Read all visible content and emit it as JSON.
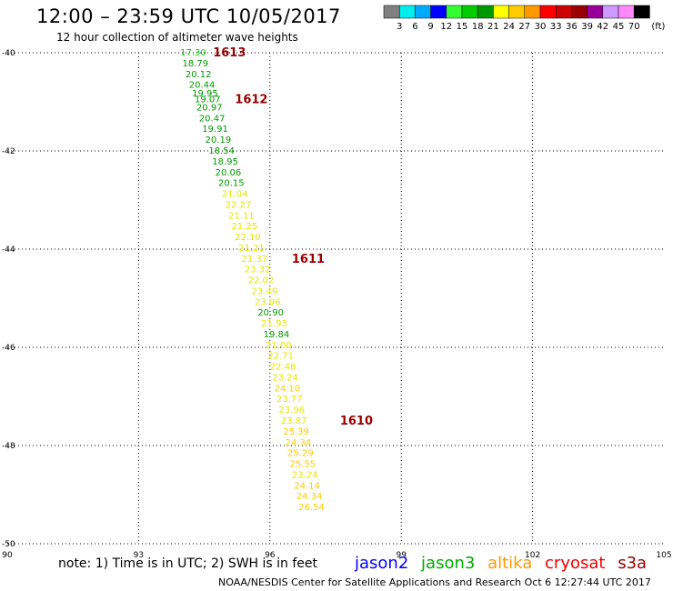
{
  "title": "12:00 – 23:59 UTC 10/05/2017",
  "subtitle": "12 hour collection of altimeter wave heights",
  "note": "note:  1) Time is in UTC; 2) SWH is in feet",
  "footer": "NOAA/NESDIS Center for Satellite Applications and Research    Oct  6 12:27:44 UTC 2017",
  "satellites": [
    {
      "name": "jason2",
      "color": "#0000ff"
    },
    {
      "name": "jason3",
      "color": "#00aa00"
    },
    {
      "name": "altika",
      "color": "#ff9900"
    },
    {
      "name": "cryosat",
      "color": "#ee0000"
    },
    {
      "name": "s3a",
      "color": "#990000"
    }
  ],
  "legend": {
    "unit": "(ft)",
    "colors": [
      "#808080",
      "#00eeee",
      "#00aaff",
      "#0000ff",
      "#33ff33",
      "#00cc00",
      "#009900",
      "#ffff00",
      "#ffcc00",
      "#ff9900",
      "#ff0000",
      "#cc0000",
      "#990000",
      "#990099",
      "#cc99ff",
      "#ff88ff",
      "#000000"
    ],
    "labels": [
      "3",
      "6",
      "9",
      "12",
      "15",
      "18",
      "21",
      "24",
      "27",
      "30",
      "33",
      "36",
      "39",
      "42",
      "45",
      "70"
    ]
  },
  "chart_data": {
    "type": "scatter",
    "xlim": [
      90,
      105
    ],
    "ylim": [
      -50,
      -40
    ],
    "x_ticks": [
      "90",
      "93",
      "96",
      "99",
      "102",
      "105"
    ],
    "y_ticks": [
      "-40",
      "-42",
      "-44",
      "-46",
      "-48",
      "-50"
    ],
    "grid": true,
    "points": [
      {
        "lon": 93.95,
        "lat": -40.0,
        "swh": "17.30"
      },
      {
        "lon": 94.0,
        "lat": -40.22,
        "swh": "18.79"
      },
      {
        "lon": 94.07,
        "lat": -40.44,
        "swh": "20.12"
      },
      {
        "lon": 94.15,
        "lat": -40.66,
        "swh": "20.44"
      },
      {
        "lon": 94.22,
        "lat": -40.83,
        "swh": "19.95"
      },
      {
        "lon": 94.28,
        "lat": -40.95,
        "swh": "19.07"
      },
      {
        "lon": 94.32,
        "lat": -41.12,
        "swh": "20.97"
      },
      {
        "lon": 94.38,
        "lat": -41.34,
        "swh": "20.47"
      },
      {
        "lon": 94.45,
        "lat": -41.56,
        "swh": "19.91"
      },
      {
        "lon": 94.52,
        "lat": -41.78,
        "swh": "20.19"
      },
      {
        "lon": 94.6,
        "lat": -42.0,
        "swh": "18.54"
      },
      {
        "lon": 94.68,
        "lat": -42.22,
        "swh": "18.95"
      },
      {
        "lon": 94.75,
        "lat": -42.44,
        "swh": "20.06"
      },
      {
        "lon": 94.82,
        "lat": -42.66,
        "swh": "20.15"
      },
      {
        "lon": 94.9,
        "lat": -42.88,
        "swh": "21.04"
      },
      {
        "lon": 94.98,
        "lat": -43.1,
        "swh": "22.27"
      },
      {
        "lon": 95.05,
        "lat": -43.32,
        "swh": "21.11"
      },
      {
        "lon": 95.12,
        "lat": -43.54,
        "swh": "21.25"
      },
      {
        "lon": 95.2,
        "lat": -43.76,
        "swh": "22.10"
      },
      {
        "lon": 95.28,
        "lat": -43.98,
        "swh": "21.21"
      },
      {
        "lon": 95.35,
        "lat": -44.2,
        "swh": "21.37"
      },
      {
        "lon": 95.42,
        "lat": -44.42,
        "swh": "23.32"
      },
      {
        "lon": 95.5,
        "lat": -44.64,
        "swh": "22.02"
      },
      {
        "lon": 95.58,
        "lat": -44.86,
        "swh": "23.49"
      },
      {
        "lon": 95.65,
        "lat": -45.08,
        "swh": "23.96"
      },
      {
        "lon": 95.72,
        "lat": -45.3,
        "swh": "20.90"
      },
      {
        "lon": 95.8,
        "lat": -45.52,
        "swh": "21.93"
      },
      {
        "lon": 95.85,
        "lat": -45.74,
        "swh": "19.84"
      },
      {
        "lon": 95.9,
        "lat": -45.96,
        "swh": "21.00"
      },
      {
        "lon": 95.95,
        "lat": -46.18,
        "swh": "22.71"
      },
      {
        "lon": 96.0,
        "lat": -46.4,
        "swh": "22.48"
      },
      {
        "lon": 96.05,
        "lat": -46.62,
        "swh": "23.24"
      },
      {
        "lon": 96.1,
        "lat": -46.84,
        "swh": "24.10"
      },
      {
        "lon": 96.15,
        "lat": -47.06,
        "swh": "23.77"
      },
      {
        "lon": 96.2,
        "lat": -47.28,
        "swh": "23.96"
      },
      {
        "lon": 96.25,
        "lat": -47.5,
        "swh": "23.87"
      },
      {
        "lon": 96.3,
        "lat": -47.72,
        "swh": "25.39"
      },
      {
        "lon": 96.35,
        "lat": -47.94,
        "swh": "24.34"
      },
      {
        "lon": 96.4,
        "lat": -48.16,
        "swh": "25.29"
      },
      {
        "lon": 96.45,
        "lat": -48.38,
        "swh": "25.55"
      },
      {
        "lon": 96.5,
        "lat": -48.6,
        "swh": "23.24"
      },
      {
        "lon": 96.55,
        "lat": -48.82,
        "swh": "24.14"
      },
      {
        "lon": 96.6,
        "lat": -49.04,
        "swh": "24.34"
      },
      {
        "lon": 96.65,
        "lat": -49.26,
        "swh": "26.54"
      }
    ],
    "time_labels": [
      {
        "lon": 94.7,
        "lat": -40.0,
        "text": "1613"
      },
      {
        "lon": 95.2,
        "lat": -40.95,
        "text": "1612"
      },
      {
        "lon": 96.5,
        "lat": -44.2,
        "text": "1611"
      },
      {
        "lon": 97.6,
        "lat": -47.5,
        "text": "1610"
      }
    ]
  }
}
